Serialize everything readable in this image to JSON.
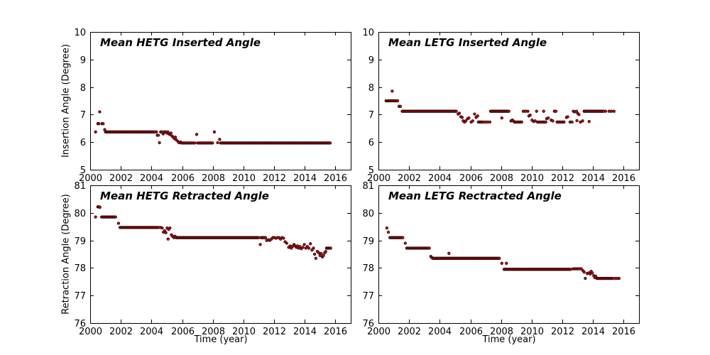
{
  "figure": {
    "background": "#ffffff",
    "marker_fill": "#c81414",
    "marker_edge": "#2d0303",
    "axis_color": "#000000"
  },
  "chart_data": [
    {
      "type": "scatter",
      "id": "hetg-inserted",
      "title": "Mean HETG Inserted Angle",
      "ylabel": "Insertion Angle (Degree)",
      "xlabel": "",
      "xlim": [
        2000,
        2017
      ],
      "ylim": [
        5,
        10
      ],
      "xticks": [
        2000,
        2002,
        2004,
        2006,
        2008,
        2010,
        2012,
        2014,
        2016
      ],
      "yticks": [
        5,
        6,
        7,
        8,
        9,
        10
      ],
      "grid": false,
      "points": [
        [
          2000.35,
          6.37
        ],
        [
          2000.5,
          6.67
        ],
        [
          2000.57,
          6.67
        ],
        [
          2000.62,
          7.1
        ],
        [
          2000.78,
          6.67
        ],
        [
          2000.85,
          6.67
        ],
        [
          2000.95,
          6.45
        ],
        [
          2004.32,
          6.37
        ],
        [
          2004.38,
          6.25
        ],
        [
          2004.45,
          6.25
        ],
        [
          2004.52,
          5.98
        ],
        [
          2004.6,
          6.37
        ],
        [
          2004.68,
          6.37
        ],
        [
          2004.76,
          6.3
        ],
        [
          2004.84,
          6.37
        ],
        [
          2004.92,
          6.37
        ],
        [
          2005.0,
          6.33
        ],
        [
          2005.07,
          6.37
        ],
        [
          2005.14,
          6.3
        ],
        [
          2005.2,
          6.28
        ],
        [
          2005.27,
          6.33
        ],
        [
          2005.34,
          6.22
        ],
        [
          2005.42,
          6.18
        ],
        [
          2005.5,
          6.12
        ],
        [
          2005.56,
          6.18
        ],
        [
          2005.63,
          6.08
        ],
        [
          2005.72,
          6.03
        ],
        [
          2005.8,
          5.98
        ],
        [
          2005.9,
          6.0
        ],
        [
          2006.95,
          6.28
        ],
        [
          2008.1,
          6.37
        ],
        [
          2008.32,
          5.98
        ],
        [
          2008.45,
          6.1
        ]
      ],
      "runs": [
        {
          "from": 2001.0,
          "to": 2004.28,
          "value": 6.37,
          "step": 0.075
        },
        {
          "from": 2005.95,
          "to": 2006.9,
          "value": 5.97,
          "step": 0.08
        },
        {
          "from": 2007.02,
          "to": 2008.02,
          "value": 5.97,
          "step": 0.08
        },
        {
          "from": 2008.52,
          "to": 2015.66,
          "value": 5.97,
          "step": 0.068
        }
      ]
    },
    {
      "type": "scatter",
      "id": "letg-inserted",
      "title": "Mean LETG Inserted Angle",
      "ylabel": "",
      "xlabel": "",
      "xlim": [
        2000,
        2017
      ],
      "ylim": [
        5,
        10
      ],
      "xticks": [
        2000,
        2002,
        2004,
        2006,
        2008,
        2010,
        2012,
        2014,
        2016
      ],
      "yticks": [
        5,
        6,
        7,
        8,
        9,
        10
      ],
      "grid": false,
      "points": [
        [
          2000.9,
          7.85
        ],
        [
          2001.35,
          7.3
        ],
        [
          2001.43,
          7.3
        ],
        [
          2005.2,
          7.02
        ],
        [
          2005.28,
          7.05
        ],
        [
          2005.38,
          6.92
        ],
        [
          2005.46,
          6.9
        ],
        [
          2005.53,
          6.77
        ],
        [
          2005.62,
          6.73
        ],
        [
          2005.7,
          6.77
        ],
        [
          2005.82,
          6.85
        ],
        [
          2005.9,
          6.88
        ],
        [
          2006.05,
          6.73
        ],
        [
          2006.15,
          6.77
        ],
        [
          2006.27,
          7.02
        ],
        [
          2006.37,
          6.9
        ],
        [
          2006.47,
          6.95
        ],
        [
          2006.98,
          6.73
        ],
        [
          2007.12,
          6.73
        ],
        [
          2007.27,
          6.73
        ],
        [
          2008.05,
          6.88
        ],
        [
          2008.65,
          6.77
        ],
        [
          2008.73,
          6.8
        ],
        [
          2008.8,
          6.77
        ],
        [
          2009.45,
          7.12
        ],
        [
          2009.6,
          7.12
        ],
        [
          2009.75,
          7.12
        ],
        [
          2009.82,
          6.95
        ],
        [
          2009.9,
          6.98
        ],
        [
          2010.02,
          6.8
        ],
        [
          2010.12,
          6.75
        ],
        [
          2010.22,
          6.77
        ],
        [
          2010.32,
          7.12
        ],
        [
          2010.78,
          7.12
        ],
        [
          2010.98,
          6.85
        ],
        [
          2011.08,
          6.88
        ],
        [
          2011.27,
          6.8
        ],
        [
          2011.37,
          6.77
        ],
        [
          2011.48,
          7.12
        ],
        [
          2011.58,
          7.12
        ],
        [
          2012.27,
          6.9
        ],
        [
          2012.35,
          6.92
        ],
        [
          2012.5,
          6.73
        ],
        [
          2012.63,
          6.73
        ],
        [
          2012.72,
          7.12
        ],
        [
          2012.8,
          7.1
        ],
        [
          2012.92,
          7.12
        ],
        [
          2012.95,
          6.78
        ],
        [
          2013.0,
          7.05
        ],
        [
          2013.08,
          7.0
        ],
        [
          2013.18,
          6.73
        ],
        [
          2013.32,
          6.77
        ],
        [
          2013.75,
          6.75
        ],
        [
          2014.82,
          7.12
        ],
        [
          2015.05,
          7.12
        ],
        [
          2015.2,
          7.12
        ],
        [
          2015.37,
          7.12
        ]
      ],
      "runs": [
        {
          "from": 2000.5,
          "to": 2001.25,
          "value": 7.5,
          "step": 0.075
        },
        {
          "from": 2001.55,
          "to": 2005.1,
          "value": 7.12,
          "step": 0.075
        },
        {
          "from": 2006.52,
          "to": 2006.88,
          "value": 6.73,
          "step": 0.08
        },
        {
          "from": 2007.32,
          "to": 2008.55,
          "value": 7.12,
          "step": 0.07
        },
        {
          "from": 2008.87,
          "to": 2009.35,
          "value": 6.73,
          "step": 0.08
        },
        {
          "from": 2010.38,
          "to": 2010.95,
          "value": 6.73,
          "step": 0.09
        },
        {
          "from": 2011.66,
          "to": 2012.12,
          "value": 6.73,
          "step": 0.09
        },
        {
          "from": 2013.42,
          "to": 2014.72,
          "value": 7.12,
          "step": 0.07
        }
      ]
    },
    {
      "type": "scatter",
      "id": "hetg-retracted",
      "title": "Mean HETG Retracted Angle",
      "ylabel": "Retraction Angle (Degree)",
      "xlabel": "Time (year)",
      "xlim": [
        2000,
        2017
      ],
      "ylim": [
        76,
        81
      ],
      "xticks": [
        2000,
        2002,
        2004,
        2006,
        2008,
        2010,
        2012,
        2014,
        2016
      ],
      "yticks": [
        76,
        77,
        78,
        79,
        80,
        81
      ],
      "grid": false,
      "points": [
        [
          2000.35,
          79.85
        ],
        [
          2000.5,
          80.22
        ],
        [
          2000.57,
          80.22
        ],
        [
          2000.64,
          80.2
        ],
        [
          2001.85,
          79.62
        ],
        [
          2004.6,
          79.47
        ],
        [
          2004.7,
          79.45
        ],
        [
          2004.78,
          79.3
        ],
        [
          2004.86,
          79.35
        ],
        [
          2004.94,
          79.28
        ],
        [
          2005.02,
          79.45
        ],
        [
          2005.08,
          79.05
        ],
        [
          2005.12,
          79.4
        ],
        [
          2005.2,
          79.45
        ],
        [
          2005.3,
          79.2
        ],
        [
          2005.38,
          79.15
        ],
        [
          2005.46,
          79.1
        ],
        [
          2005.54,
          79.15
        ],
        [
          2011.1,
          78.85
        ],
        [
          2011.52,
          79.0
        ],
        [
          2011.62,
          79.02
        ],
        [
          2011.72,
          79.0
        ],
        [
          2011.82,
          79.05
        ],
        [
          2011.92,
          79.1
        ],
        [
          2012.02,
          79.1
        ],
        [
          2012.12,
          79.08
        ],
        [
          2012.22,
          79.1
        ],
        [
          2012.32,
          79.1
        ],
        [
          2012.42,
          79.05
        ],
        [
          2012.52,
          79.1
        ],
        [
          2012.62,
          79.08
        ],
        [
          2012.72,
          78.95
        ],
        [
          2012.82,
          78.9
        ],
        [
          2012.95,
          78.75
        ],
        [
          2013.05,
          78.8
        ],
        [
          2013.12,
          78.72
        ],
        [
          2013.2,
          78.78
        ],
        [
          2013.3,
          78.85
        ],
        [
          2013.37,
          78.8
        ],
        [
          2013.45,
          78.75
        ],
        [
          2013.52,
          78.8
        ],
        [
          2013.6,
          78.72
        ],
        [
          2013.67,
          78.78
        ],
        [
          2013.77,
          78.7
        ],
        [
          2013.87,
          78.75
        ],
        [
          2013.97,
          78.85
        ],
        [
          2014.07,
          78.72
        ],
        [
          2014.17,
          78.78
        ],
        [
          2014.27,
          78.72
        ],
        [
          2014.37,
          78.88
        ],
        [
          2014.47,
          78.65
        ],
        [
          2014.57,
          78.72
        ],
        [
          2014.64,
          78.5
        ],
        [
          2014.72,
          78.35
        ],
        [
          2014.82,
          78.6
        ],
        [
          2014.92,
          78.55
        ],
        [
          2015.0,
          78.45
        ],
        [
          2015.07,
          78.52
        ],
        [
          2015.15,
          78.4
        ],
        [
          2015.22,
          78.45
        ],
        [
          2015.3,
          78.55
        ],
        [
          2015.37,
          78.6
        ]
      ],
      "runs": [
        {
          "from": 2000.75,
          "to": 2001.72,
          "value": 79.85,
          "step": 0.07
        },
        {
          "from": 2001.95,
          "to": 2004.52,
          "value": 79.47,
          "step": 0.07
        },
        {
          "from": 2005.62,
          "to": 2011.02,
          "value": 79.1,
          "step": 0.068
        },
        {
          "from": 2011.16,
          "to": 2011.46,
          "value": 79.1,
          "step": 0.07
        },
        {
          "from": 2015.42,
          "to": 2015.7,
          "value": 78.72,
          "step": 0.055
        }
      ]
    },
    {
      "type": "scatter",
      "id": "letg-retracted",
      "title": "Mean LETG Rectracted Angle",
      "ylabel": "",
      "xlabel": "Time (year)",
      "xlim": [
        2000,
        2017
      ],
      "ylim": [
        76,
        81
      ],
      "xticks": [
        2000,
        2002,
        2004,
        2006,
        2008,
        2010,
        2012,
        2014,
        2016
      ],
      "yticks": [
        76,
        77,
        78,
        79,
        80,
        81
      ],
      "grid": false,
      "points": [
        [
          2000.55,
          79.45
        ],
        [
          2000.65,
          79.3
        ],
        [
          2001.75,
          78.9
        ],
        [
          2003.42,
          78.42
        ],
        [
          2003.48,
          78.38
        ],
        [
          2004.6,
          78.53
        ],
        [
          2008.05,
          78.17
        ],
        [
          2008.35,
          78.17
        ],
        [
          2013.35,
          77.9
        ],
        [
          2013.42,
          77.85
        ],
        [
          2013.5,
          77.62
        ],
        [
          2013.62,
          77.8
        ],
        [
          2013.72,
          77.82
        ],
        [
          2013.82,
          77.78
        ],
        [
          2013.88,
          77.88
        ],
        [
          2013.95,
          77.82
        ],
        [
          2014.05,
          77.72
        ],
        [
          2014.12,
          77.65
        ],
        [
          2014.18,
          77.7
        ],
        [
          2015.45,
          77.62
        ],
        [
          2015.58,
          77.62
        ],
        [
          2015.7,
          77.62
        ]
      ],
      "runs": [
        {
          "from": 2000.75,
          "to": 2001.62,
          "value": 79.1,
          "step": 0.07
        },
        {
          "from": 2001.85,
          "to": 2003.32,
          "value": 78.72,
          "step": 0.07
        },
        {
          "from": 2003.55,
          "to": 2007.95,
          "value": 78.35,
          "step": 0.07
        },
        {
          "from": 2008.2,
          "to": 2012.6,
          "value": 77.95,
          "step": 0.07
        },
        {
          "from": 2012.7,
          "to": 2013.25,
          "value": 77.97,
          "step": 0.09
        },
        {
          "from": 2014.25,
          "to": 2015.32,
          "value": 77.62,
          "step": 0.07
        }
      ]
    }
  ]
}
